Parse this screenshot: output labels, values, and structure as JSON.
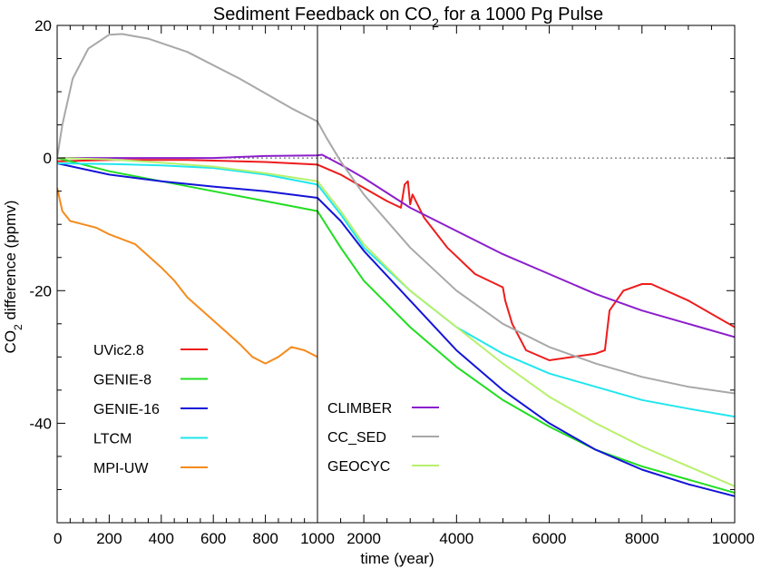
{
  "chart_data": {
    "type": "line",
    "title": "Sediment Feedback on CO",
    "title_subscript": "2",
    "title_suffix": " for a 1000 Pg Pulse",
    "xlabel": "time (year)",
    "ylabel_prefix": "CO",
    "ylabel_subscript": "2",
    "ylabel_suffix": " difference (ppmv)",
    "x_axis_note": "x axis is split: linear 0–1000 yr on the left, linear 1000–10000 yr on the right",
    "xlim": [
      0,
      10000
    ],
    "ylim": [
      -55,
      20
    ],
    "x_ticks_left": [
      "0",
      "200",
      "400",
      "600",
      "800",
      "1000"
    ],
    "x_ticks_right": [
      "2000",
      "4000",
      "6000",
      "8000",
      "10000"
    ],
    "y_ticks": [
      "20",
      "0",
      "-20",
      "-40"
    ],
    "zero_line": "dotted",
    "series": [
      {
        "name": "UVic2.8",
        "color": "#ee1c1c",
        "x": [
          0,
          200,
          500,
          800,
          1000,
          1500,
          2000,
          2500,
          2800,
          2880,
          2950,
          3000,
          3050,
          3300,
          3800,
          4400,
          5000,
          5050,
          5200,
          5500,
          6000,
          7000,
          7200,
          7300,
          7600,
          8000,
          8200,
          9000,
          10000
        ],
        "y": [
          -0.5,
          -0.3,
          -0.3,
          -0.6,
          -1.0,
          -2.5,
          -4.5,
          -6.5,
          -7.5,
          -4.0,
          -3.5,
          -7.0,
          -5.5,
          -9.0,
          -13.5,
          -17.5,
          -19.5,
          -21.5,
          -25.0,
          -29.0,
          -30.5,
          -29.5,
          -29.0,
          -23.0,
          -20.0,
          -19.0,
          -19.0,
          -21.5,
          -25.5
        ]
      },
      {
        "name": "GENIE-8",
        "color": "#22dd22",
        "x": [
          0,
          200,
          400,
          600,
          800,
          1000,
          1500,
          2000,
          3000,
          4000,
          5000,
          6000,
          7000,
          8000,
          9000,
          10000
        ],
        "y": [
          0,
          -2.0,
          -3.5,
          -5.0,
          -6.5,
          -8.0,
          -13.5,
          -18.5,
          -25.5,
          -31.5,
          -36.5,
          -40.5,
          -44.0,
          -46.5,
          -48.5,
          -50.5
        ]
      },
      {
        "name": "GENIE-16",
        "color": "#1414d8",
        "x": [
          0,
          200,
          400,
          600,
          800,
          1000,
          1500,
          2000,
          3000,
          4000,
          5000,
          6000,
          7000,
          8000,
          9000,
          10000
        ],
        "y": [
          -0.8,
          -2.5,
          -3.5,
          -4.3,
          -5.0,
          -6.0,
          -9.5,
          -14.0,
          -21.5,
          -29.0,
          -35.0,
          -40.0,
          -44.0,
          -47.0,
          -49.2,
          -51.0
        ]
      },
      {
        "name": "LTCM",
        "color": "#22e6ee",
        "x": [
          0,
          200,
          400,
          600,
          800,
          1000,
          1500,
          2000,
          3000,
          4000,
          5000,
          6000,
          7000,
          8000,
          9000,
          10000
        ],
        "y": [
          -0.8,
          -0.9,
          -1.1,
          -1.5,
          -2.5,
          -4.0,
          -8.5,
          -13.5,
          -20.0,
          -25.5,
          -29.5,
          -32.5,
          -34.5,
          -36.5,
          -37.8,
          -39.0
        ]
      },
      {
        "name": "MPI-UW",
        "color": "#f58b1e",
        "x": [
          0,
          20,
          50,
          100,
          150,
          200,
          300,
          400,
          450,
          500,
          600,
          700,
          750,
          800,
          850,
          900,
          950,
          1000
        ],
        "y": [
          -4.5,
          -8.0,
          -9.5,
          -10.0,
          -10.5,
          -11.5,
          -13.0,
          -16.5,
          -18.5,
          -21.0,
          -24.5,
          -28.0,
          -30.0,
          -31.0,
          -30.0,
          -28.5,
          -29.0,
          -30.0
        ]
      },
      {
        "name": "CLIMBER",
        "color": "#8c1ecc",
        "x": [
          0,
          200,
          400,
          600,
          800,
          1000,
          1100,
          1500,
          2000,
          3000,
          4000,
          5000,
          6000,
          7000,
          8000,
          9000,
          10000
        ],
        "y": [
          0,
          0,
          0,
          0,
          0.3,
          0.4,
          0.5,
          -1.0,
          -3.0,
          -7.5,
          -11.0,
          -14.5,
          -17.5,
          -20.5,
          -23.0,
          -25.0,
          -27.0
        ]
      },
      {
        "name": "CC_SED",
        "color": "#a8a8a8",
        "x": [
          0,
          20,
          60,
          120,
          200,
          250,
          350,
          500,
          700,
          900,
          1000,
          1200,
          1500,
          2000,
          3000,
          4000,
          5000,
          6000,
          7000,
          8000,
          9000,
          10000
        ],
        "y": [
          0,
          5.0,
          12.0,
          16.5,
          18.6,
          18.7,
          18.0,
          16.0,
          12.0,
          7.5,
          5.5,
          3.0,
          -0.5,
          -5.5,
          -13.5,
          -20.0,
          -25.0,
          -28.5,
          -31.0,
          -33.0,
          -34.5,
          -35.5
        ]
      },
      {
        "name": "GEOCYC",
        "color": "#b8f06e",
        "x": [
          0,
          200,
          400,
          600,
          800,
          1000,
          1500,
          2000,
          3000,
          4000,
          5000,
          6000,
          7000,
          8000,
          9000,
          10000
        ],
        "y": [
          0,
          -0.2,
          -0.7,
          -1.3,
          -2.3,
          -3.5,
          -8.0,
          -13.0,
          -20.0,
          -25.5,
          -31.0,
          -36.0,
          -40.0,
          -43.5,
          -46.5,
          -49.5
        ]
      }
    ],
    "legend_left": [
      "UVic2.8",
      "GENIE-8",
      "GENIE-16",
      "LTCM",
      "MPI-UW"
    ],
    "legend_right": [
      "CLIMBER",
      "CC_SED",
      "GEOCYC"
    ]
  }
}
